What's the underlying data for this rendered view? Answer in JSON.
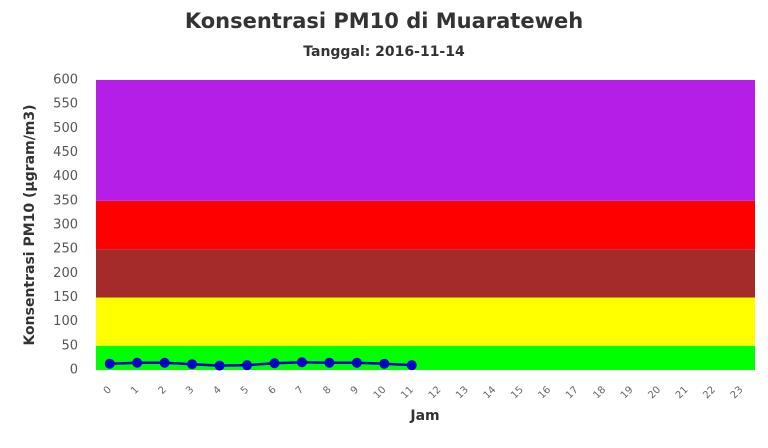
{
  "chart_data": {
    "type": "line",
    "title": "Konsentrasi PM10 di Muarateweh",
    "subtitle": "Tanggal: 2016-11-14",
    "y_label": "Konsentrasi PM10 (µgram/m3)",
    "x_label": "Jam",
    "categories": [
      "0",
      "1",
      "2",
      "3",
      "4",
      "5",
      "6",
      "7",
      "8",
      "9",
      "10",
      "11",
      "12",
      "13",
      "14",
      "15",
      "16",
      "17",
      "18",
      "19",
      "20",
      "21",
      "22",
      "23"
    ],
    "series": [
      {
        "name": "PM10",
        "color": "#0000cc",
        "values": [
          13,
          15,
          15,
          12,
          9,
          10,
          14,
          16,
          15,
          15,
          13,
          10,
          null,
          null,
          null,
          null,
          null,
          null,
          null,
          null,
          null,
          null,
          null,
          null
        ]
      }
    ],
    "bands": [
      {
        "from": 0,
        "to": 50,
        "color": "#00ff00"
      },
      {
        "from": 50,
        "to": 150,
        "color": "#ffff00"
      },
      {
        "from": 150,
        "to": 250,
        "color": "#a52a2a"
      },
      {
        "from": 250,
        "to": 350,
        "color": "#ff0000"
      },
      {
        "from": 350,
        "to": 600,
        "color": "#b41ee6"
      }
    ],
    "ylim": [
      0,
      600
    ],
    "yticks": [
      0,
      50,
      100,
      150,
      200,
      250,
      300,
      350,
      400,
      450,
      500,
      550,
      600
    ]
  }
}
